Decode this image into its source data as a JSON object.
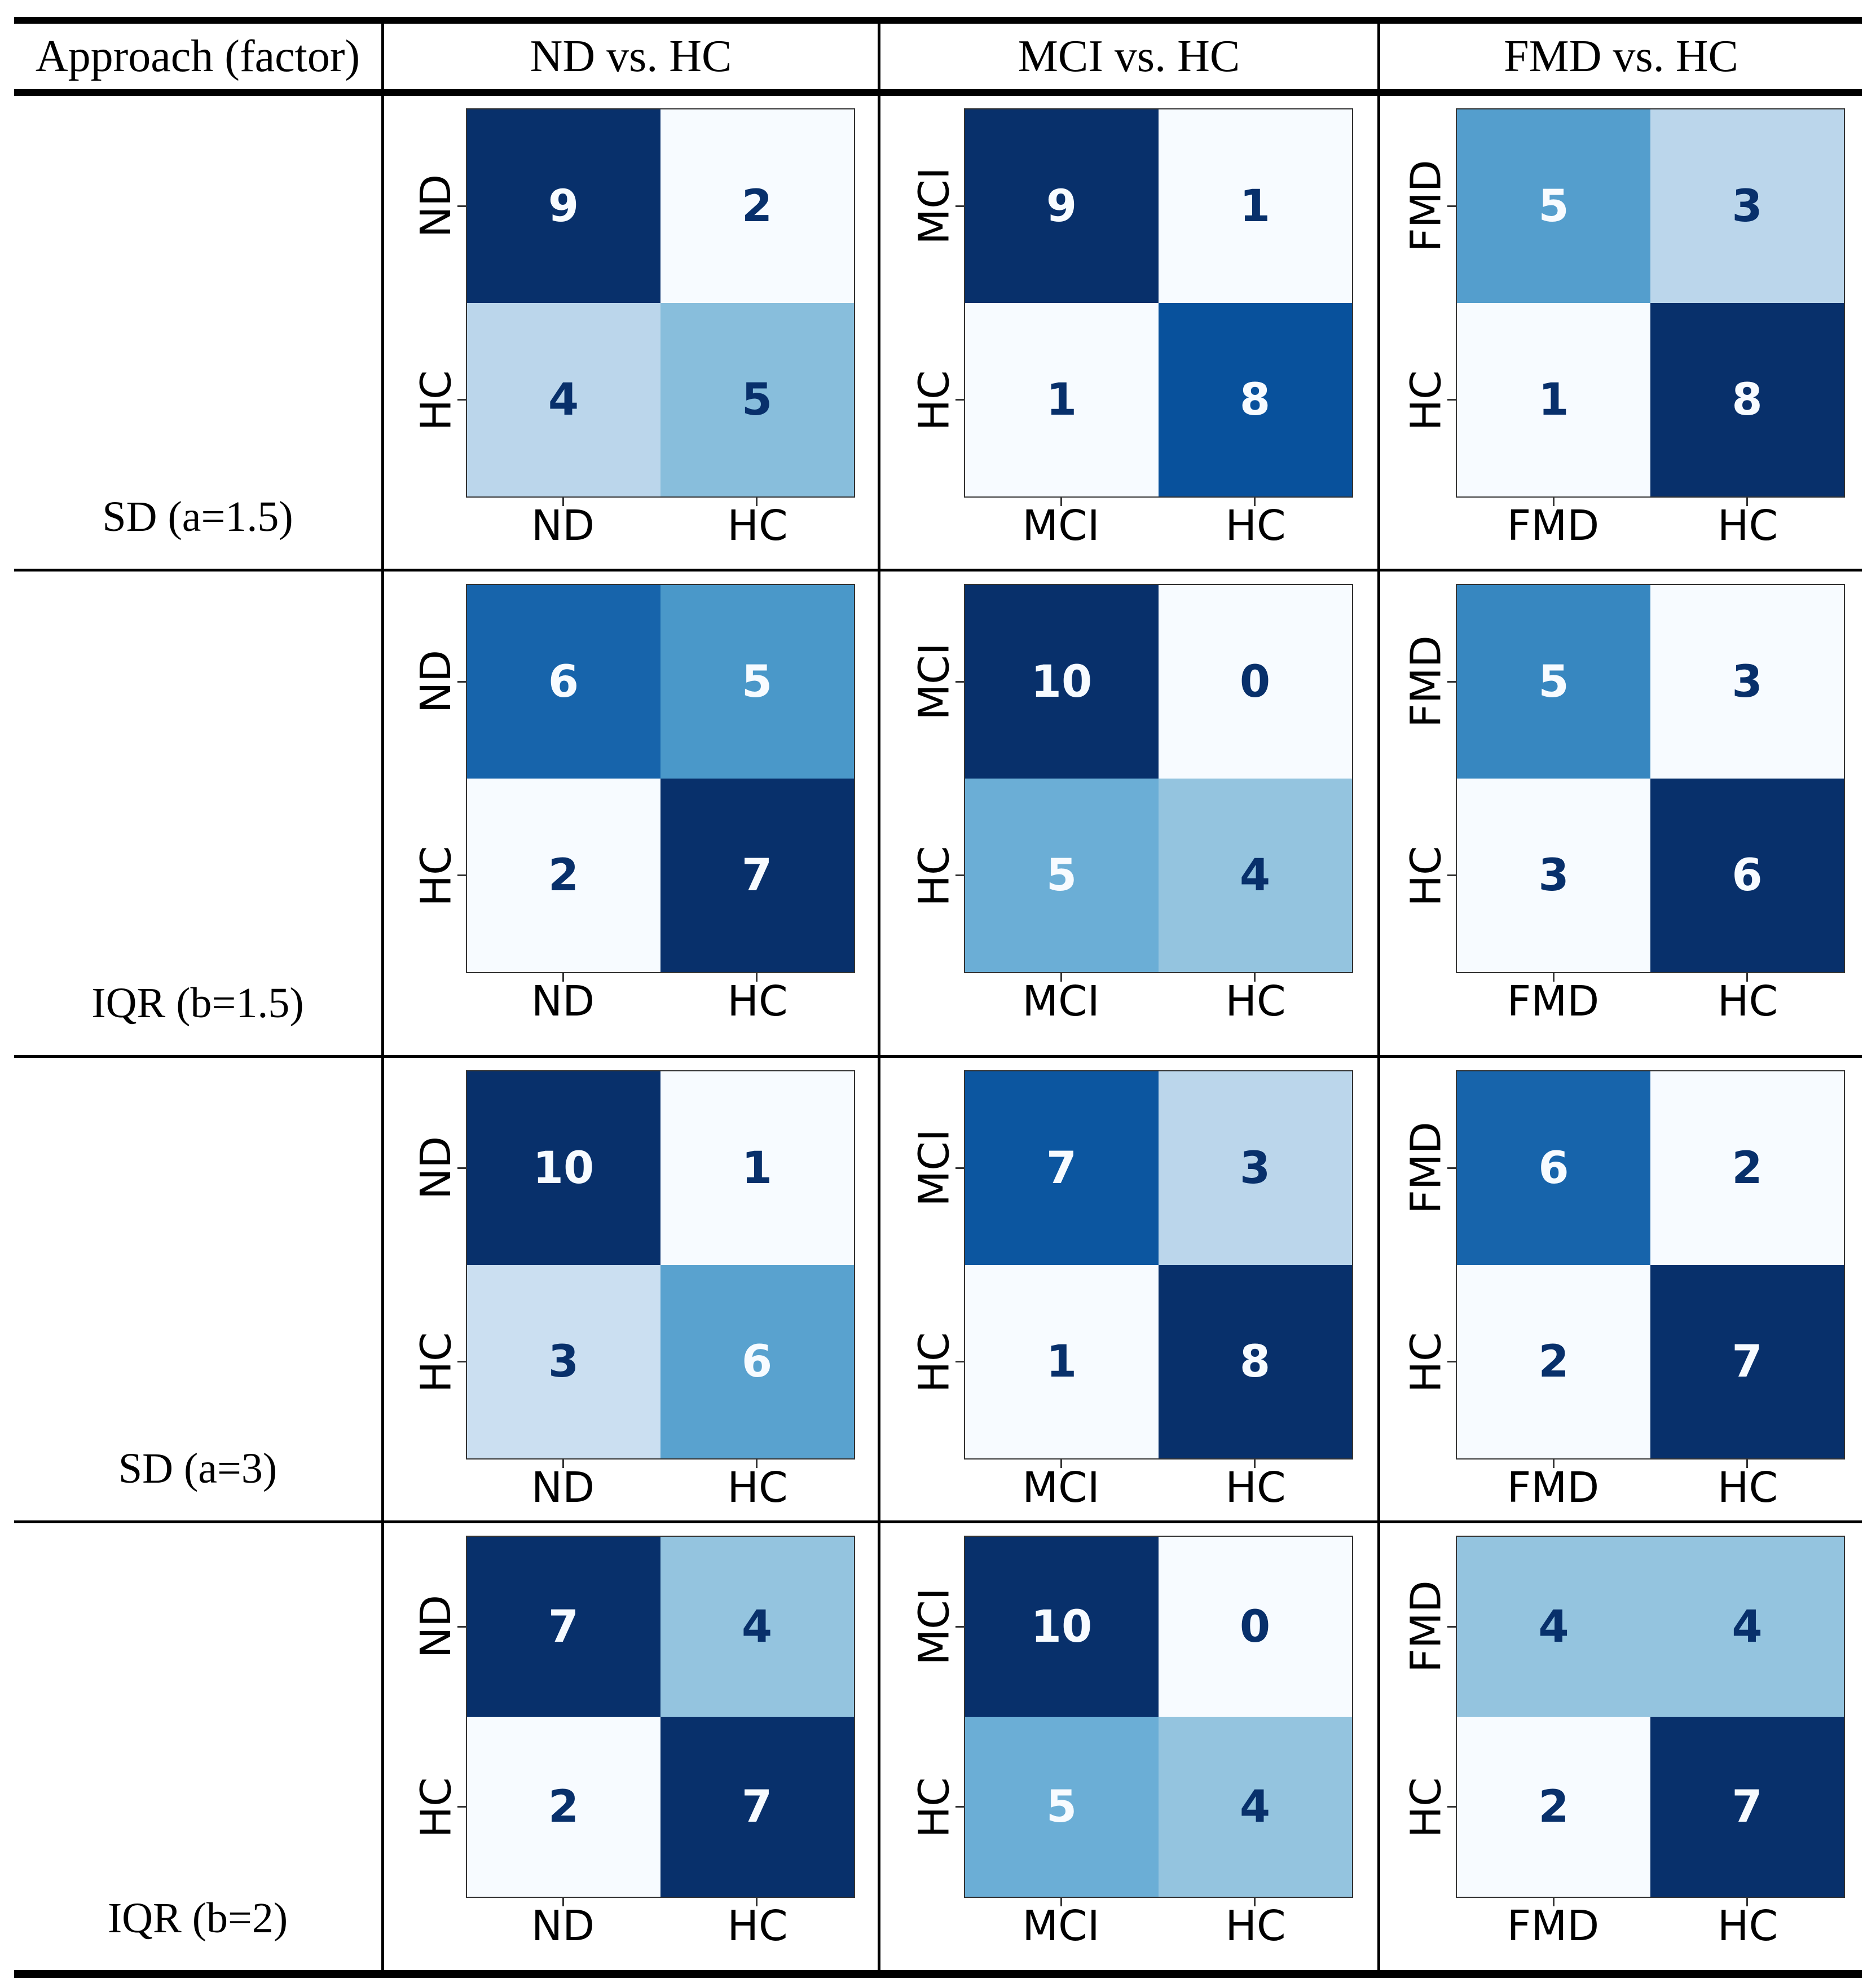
{
  "colors": {
    "colormap": "Blues",
    "cmap_stops": [
      "#f7fbff",
      "#deebf7",
      "#c6dbef",
      "#9ecae1",
      "#6baed6",
      "#4292c6",
      "#2171b5",
      "#08519c",
      "#08306b"
    ],
    "value_text_on_dark": "#f7fbff",
    "value_text_on_light": "#08306b",
    "rule_color": "#000000",
    "spine_color": "#333333"
  },
  "chart_data": {
    "type": "heatmap",
    "description": "Table of 2x2 confusion matrices (true label rows vs predicted label columns), Blues colormap normalized per matrix, text color switches at (min+max)/2",
    "legend": "none",
    "grid_lines": "off",
    "grid": {
      "row_header_label": "Approach (factor)",
      "column_headers": [
        "ND vs. HC",
        "MCI vs. HC",
        "FMD vs. HC"
      ],
      "rows": [
        {
          "label": "SD (a=1.5)",
          "matrices": [
            {
              "task": "ND vs. HC",
              "classes": [
                "ND",
                "HC"
              ],
              "values": [
                [
                  9,
                  2
                ],
                [
                  4,
                  5
                ]
              ]
            },
            {
              "task": "MCI vs. HC",
              "classes": [
                "MCI",
                "HC"
              ],
              "values": [
                [
                  9,
                  1
                ],
                [
                  1,
                  8
                ]
              ]
            },
            {
              "task": "FMD vs. HC",
              "classes": [
                "FMD",
                "HC"
              ],
              "values": [
                [
                  5,
                  3
                ],
                [
                  1,
                  8
                ]
              ]
            }
          ]
        },
        {
          "label": "IQR (b=1.5)",
          "matrices": [
            {
              "task": "ND vs. HC",
              "classes": [
                "ND",
                "HC"
              ],
              "values": [
                [
                  6,
                  5
                ],
                [
                  2,
                  7
                ]
              ]
            },
            {
              "task": "MCI vs. HC",
              "classes": [
                "MCI",
                "HC"
              ],
              "values": [
                [
                  10,
                  0
                ],
                [
                  5,
                  4
                ]
              ]
            },
            {
              "task": "FMD vs. HC",
              "classes": [
                "FMD",
                "HC"
              ],
              "values": [
                [
                  5,
                  3
                ],
                [
                  3,
                  6
                ]
              ]
            }
          ]
        },
        {
          "label": "SD (a=3)",
          "matrices": [
            {
              "task": "ND vs. HC",
              "classes": [
                "ND",
                "HC"
              ],
              "values": [
                [
                  10,
                  1
                ],
                [
                  3,
                  6
                ]
              ]
            },
            {
              "task": "MCI vs. HC",
              "classes": [
                "MCI",
                "HC"
              ],
              "values": [
                [
                  7,
                  3
                ],
                [
                  1,
                  8
                ]
              ]
            },
            {
              "task": "FMD vs. HC",
              "classes": [
                "FMD",
                "HC"
              ],
              "values": [
                [
                  6,
                  2
                ],
                [
                  2,
                  7
                ]
              ]
            }
          ]
        },
        {
          "label": "IQR (b=2)",
          "matrices": [
            {
              "task": "ND vs. HC",
              "classes": [
                "ND",
                "HC"
              ],
              "values": [
                [
                  7,
                  4
                ],
                [
                  2,
                  7
                ]
              ]
            },
            {
              "task": "MCI vs. HC",
              "classes": [
                "MCI",
                "HC"
              ],
              "values": [
                [
                  10,
                  0
                ],
                [
                  5,
                  4
                ]
              ]
            },
            {
              "task": "FMD vs. HC",
              "classes": [
                "FMD",
                "HC"
              ],
              "values": [
                [
                  4,
                  4
                ],
                [
                  2,
                  7
                ]
              ]
            }
          ]
        }
      ]
    }
  }
}
